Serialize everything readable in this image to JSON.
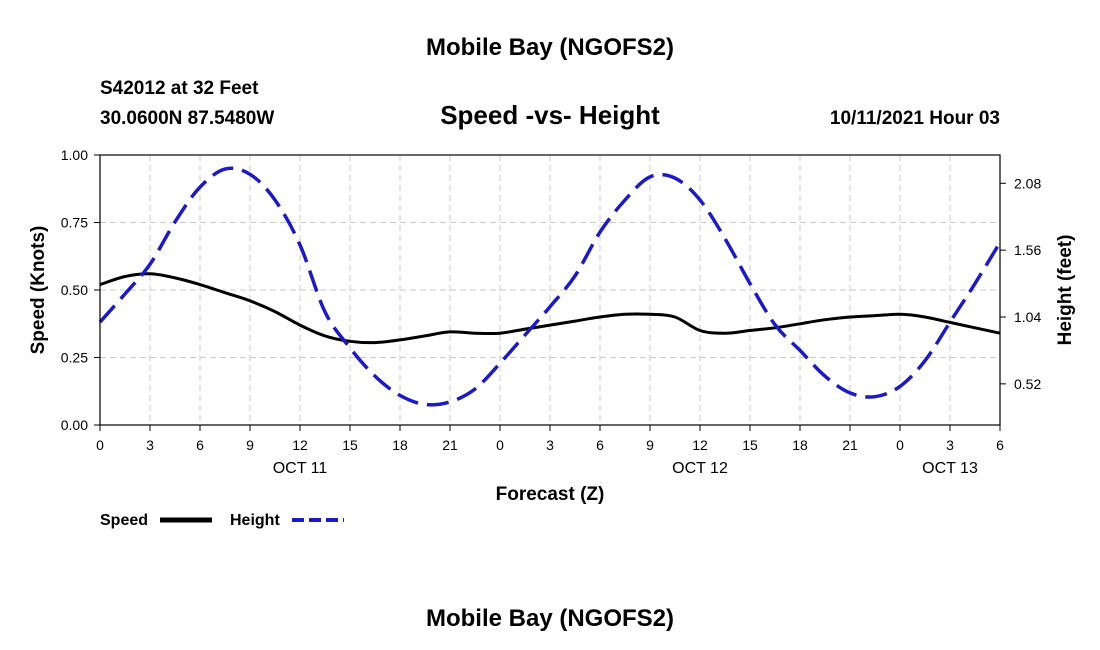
{
  "header": {
    "top_title": "Mobile Bay (NGOFS2)",
    "bottom_title": "Mobile Bay (NGOFS2)",
    "station": "S42012 at 32 Feet",
    "coords": "30.0600N  87.5480W",
    "datetime": "10/11/2021 Hour 03"
  },
  "colors": {
    "speed": "#000000",
    "height": "#1a1acc",
    "grid": "#c8c8c8"
  },
  "chart_data": {
    "type": "line",
    "title": "Speed -vs- Height",
    "xlabel": "Forecast (Z)",
    "ylabel": "Speed (Knots)",
    "y2label": "Height (feet)",
    "x_range": [
      0,
      54
    ],
    "ylim": [
      0,
      1
    ],
    "y2lim": [
      0.2,
      2.3
    ],
    "yticks": [
      "0.00",
      "0.25",
      "0.50",
      "0.75",
      "1.00"
    ],
    "y2ticks": [
      "0.52",
      "1.04",
      "1.56",
      "2.08"
    ],
    "xticks": [
      "0",
      "3",
      "6",
      "9",
      "12",
      "15",
      "18",
      "21",
      "0",
      "3",
      "6",
      "9",
      "12",
      "15",
      "18",
      "21",
      "0",
      "3",
      "6"
    ],
    "day_labels": [
      {
        "label": "OCT 11",
        "hour": 12
      },
      {
        "label": "OCT 12",
        "hour": 36
      },
      {
        "label": "OCT 13",
        "hour": 51
      }
    ],
    "series": [
      {
        "name": "Speed",
        "axis": "left",
        "style": "solid",
        "x": [
          0,
          1.5,
          3,
          4.5,
          6,
          7.5,
          9,
          10.5,
          12,
          13.5,
          15,
          16.5,
          18,
          19.5,
          21,
          22.5,
          24,
          25.5,
          27,
          28.5,
          30,
          31.5,
          33,
          34.5,
          36,
          37.5,
          39,
          40.5,
          42,
          43.5,
          45,
          46.5,
          48,
          49.5,
          51,
          52.5,
          54
        ],
        "values": [
          0.52,
          0.55,
          0.56,
          0.545,
          0.52,
          0.49,
          0.46,
          0.42,
          0.37,
          0.33,
          0.31,
          0.305,
          0.315,
          0.33,
          0.345,
          0.34,
          0.34,
          0.355,
          0.37,
          0.385,
          0.4,
          0.41,
          0.41,
          0.4,
          0.35,
          0.34,
          0.35,
          0.36,
          0.375,
          0.39,
          0.4,
          0.405,
          0.41,
          0.4,
          0.38,
          0.36,
          0.34
        ]
      },
      {
        "name": "Height",
        "axis": "right",
        "style": "dashed",
        "x": [
          0,
          1.5,
          3,
          4.5,
          6,
          7.5,
          9,
          10.5,
          12,
          13.5,
          15,
          16.5,
          18,
          19.5,
          21,
          22.5,
          24,
          25.5,
          27,
          28.5,
          30,
          31.5,
          33,
          34.5,
          36,
          37.5,
          39,
          40.5,
          42,
          43.5,
          45,
          46.5,
          48,
          49.5,
          51,
          52.5,
          54
        ],
        "values": [
          1.0,
          1.22,
          1.45,
          1.78,
          2.05,
          2.19,
          2.15,
          1.95,
          1.6,
          1.08,
          0.8,
          0.58,
          0.43,
          0.36,
          0.38,
          0.48,
          0.68,
          0.9,
          1.12,
          1.36,
          1.7,
          1.95,
          2.13,
          2.12,
          1.95,
          1.65,
          1.3,
          0.98,
          0.78,
          0.58,
          0.45,
          0.42,
          0.5,
          0.7,
          1.0,
          1.3,
          1.62
        ]
      }
    ],
    "legend": [
      {
        "label": "Speed",
        "style": "solid"
      },
      {
        "label": "Height",
        "style": "dashed"
      }
    ],
    "legend_position": "bottom-left",
    "grid": true
  }
}
